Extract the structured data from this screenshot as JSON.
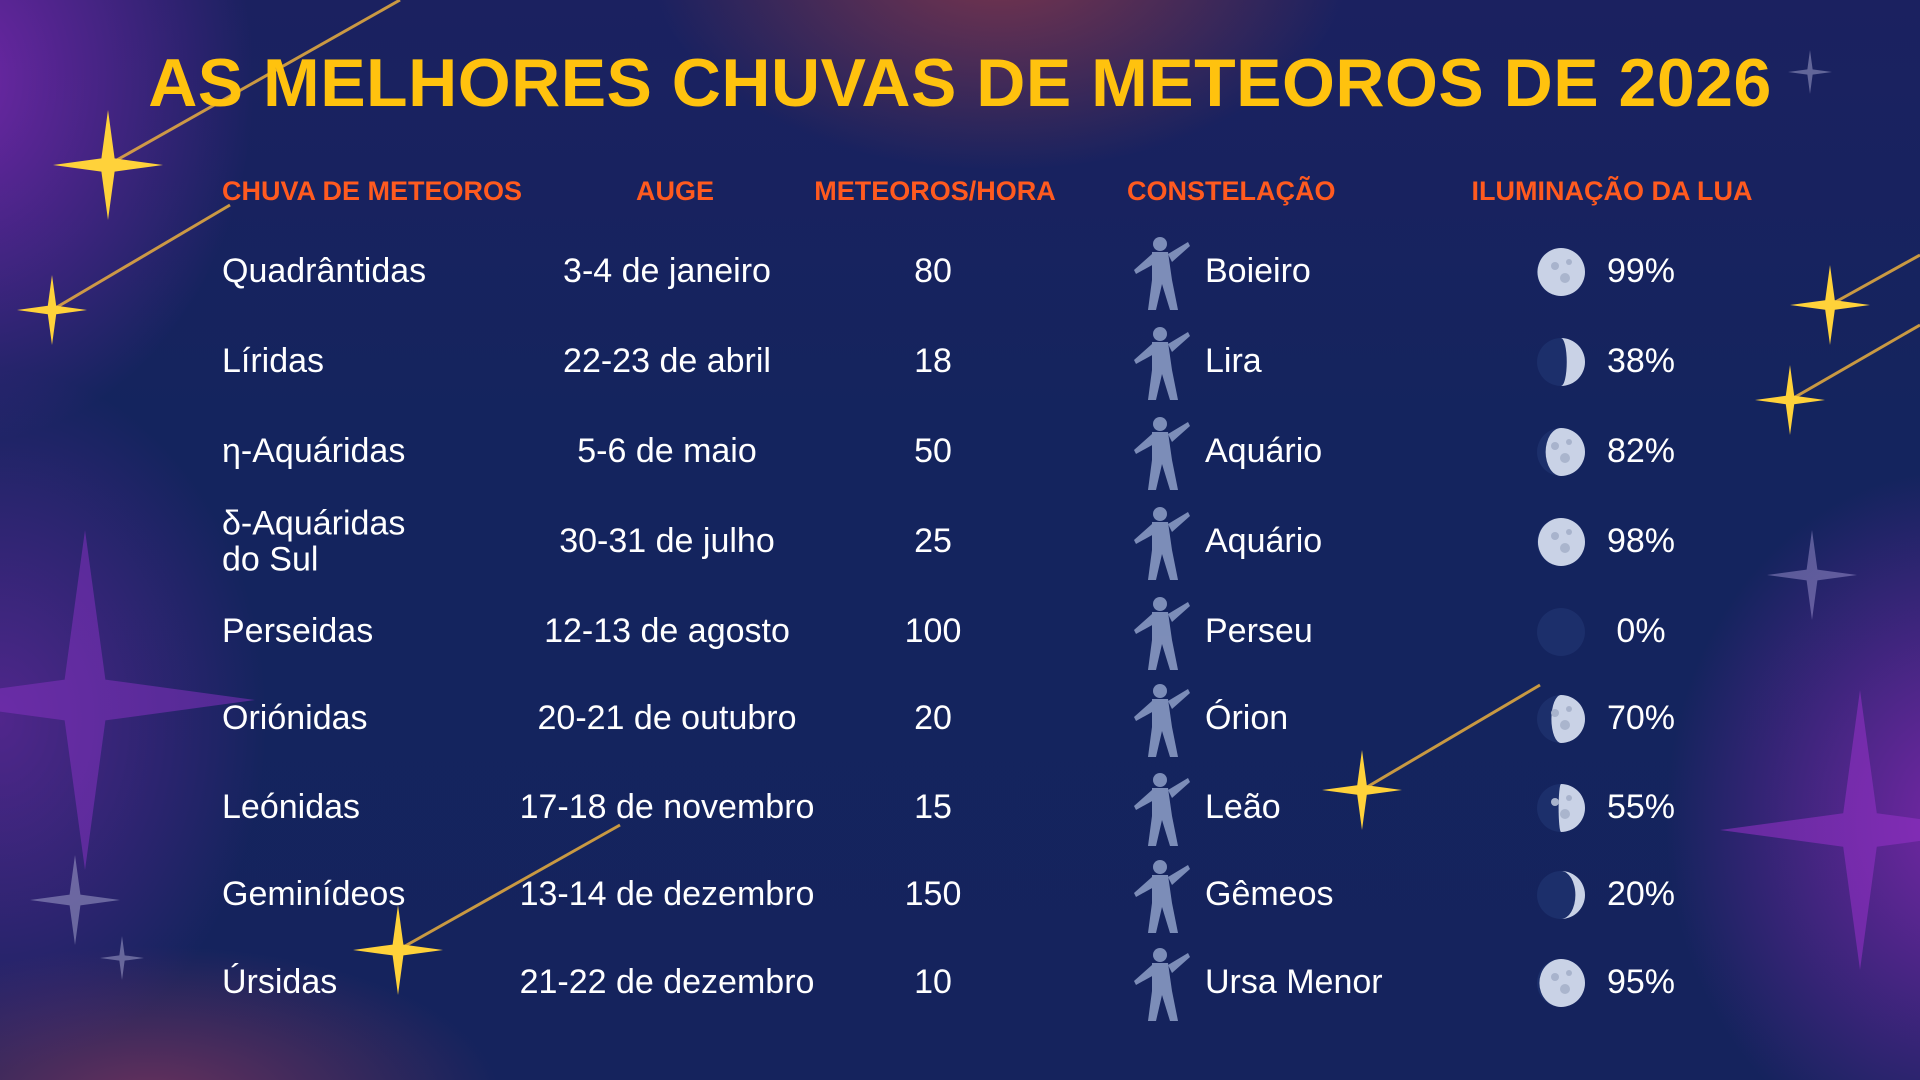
{
  "title": "AS MELHORES CHUVAS DE METEOROS DE 2026",
  "headers": {
    "name": "CHUVA DE METEOROS",
    "peak": "AUGE",
    "rate": "METEOROS/HORA",
    "constellation": "CONSTELAÇÃO",
    "moon": "ILUMINAÇÃO DA LUA"
  },
  "colors": {
    "title": "#ffc20e",
    "header": "#ff5a1f",
    "background": "#15235d",
    "text": "#ffffff"
  },
  "rows": [
    {
      "name": "Quadrântidas",
      "peak": "3-4 de janeiro",
      "rate": "80",
      "constellation": "Boieiro",
      "icon": "bootes-figure-icon",
      "moon": "99%",
      "moon_fraction": 0.99
    },
    {
      "name": "Líridas",
      "peak": "22-23 de abril",
      "rate": "18",
      "constellation": "Lira",
      "icon": "lyre-icon",
      "moon": "38%",
      "moon_fraction": 0.38
    },
    {
      "name": "η-Aquáridas",
      "peak": "5-6 de maio",
      "rate": "50",
      "constellation": "Aquário",
      "icon": "aquarius-figure-icon",
      "moon": "82%",
      "moon_fraction": 0.82
    },
    {
      "name": "δ-Aquáridas\ndo Sul",
      "peak": "30-31 de julho",
      "rate": "25",
      "constellation": "Aquário",
      "icon": "aquarius-figure-icon",
      "moon": "98%",
      "moon_fraction": 0.98
    },
    {
      "name": "Perseidas",
      "peak": "12-13 de agosto",
      "rate": "100",
      "constellation": "Perseu",
      "icon": "perseus-figure-icon",
      "moon": "0%",
      "moon_fraction": 0
    },
    {
      "name": "Oriónidas",
      "peak": "20-21 de outubro",
      "rate": "20",
      "constellation": "Órion",
      "icon": "orion-figure-icon",
      "moon": "70%",
      "moon_fraction": 0.7
    },
    {
      "name": "Leónidas",
      "peak": "17-18 de novembro",
      "rate": "15",
      "constellation": "Leão",
      "icon": "lion-icon",
      "moon": "55%",
      "moon_fraction": 0.55
    },
    {
      "name": "Geminídeos",
      "peak": "13-14 de dezembro",
      "rate": "150",
      "constellation": "Gêmeos",
      "icon": "twins-figure-icon",
      "moon": "20%",
      "moon_fraction": 0.2
    },
    {
      "name": "Úrsidas",
      "peak": "21-22 de dezembro",
      "rate": "10",
      "constellation": "Ursa Menor",
      "icon": "bear-icon",
      "moon": "95%",
      "moon_fraction": 0.95
    }
  ]
}
